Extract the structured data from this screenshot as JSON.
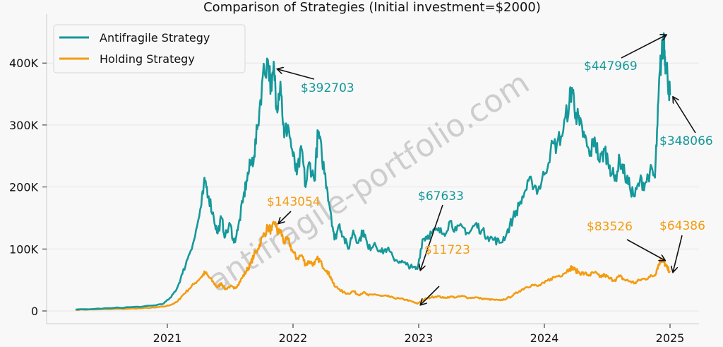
{
  "chart_data": {
    "type": "line",
    "title": "Comparison of Strategies (Initial investment=$2000)",
    "xlabel": "",
    "ylabel": "",
    "xlim": [
      2020.0,
      2025.2
    ],
    "ylim": [
      -20000,
      480000
    ],
    "x_ticks": [
      2021,
      2022,
      2023,
      2024,
      2025
    ],
    "x_tick_labels": [
      "2021",
      "2022",
      "2023",
      "2024",
      "2025"
    ],
    "y_ticks": [
      0,
      100000,
      200000,
      300000,
      400000
    ],
    "y_tick_labels": [
      "0",
      "100K",
      "200K",
      "300K",
      "400K"
    ],
    "grid": "horizontal",
    "legend": {
      "placement": "top-left",
      "entries": [
        "Antifragile Strategy",
        "Holding Strategy"
      ]
    },
    "watermark": "antifragile-portfolio.com",
    "series": [
      {
        "name": "Antifragile Strategy",
        "color": "#16989a",
        "x": [
          2020.27,
          2020.4,
          2020.55,
          2020.7,
          2020.8,
          2020.9,
          2020.97,
          2021.03,
          2021.08,
          2021.12,
          2021.17,
          2021.22,
          2021.27,
          2021.3,
          2021.33,
          2021.37,
          2021.4,
          2021.43,
          2021.46,
          2021.5,
          2021.53,
          2021.56,
          2021.6,
          2021.63,
          2021.66,
          2021.69,
          2021.72,
          2021.76,
          2021.8,
          2021.83,
          2021.85,
          2021.87,
          2021.9,
          2021.93,
          2021.96,
          2022.0,
          2022.03,
          2022.07,
          2022.1,
          2022.13,
          2022.17,
          2022.2,
          2022.23,
          2022.27,
          2022.3,
          2022.33,
          2022.37,
          2022.4,
          2022.44,
          2022.48,
          2022.52,
          2022.56,
          2022.6,
          2022.65,
          2022.7,
          2022.75,
          2022.8,
          2022.85,
          2022.9,
          2022.95,
          2022.99,
          2023.03,
          2023.06,
          2023.1,
          2023.15,
          2023.2,
          2023.25,
          2023.3,
          2023.35,
          2023.4,
          2023.45,
          2023.5,
          2023.55,
          2023.6,
          2023.65,
          2023.7,
          2023.75,
          2023.8,
          2023.85,
          2023.9,
          2023.95,
          2024.0,
          2024.05,
          2024.1,
          2024.15,
          2024.2,
          2024.22,
          2024.25,
          2024.28,
          2024.32,
          2024.36,
          2024.4,
          2024.44,
          2024.48,
          2024.52,
          2024.56,
          2024.6,
          2024.64,
          2024.68,
          2024.72,
          2024.76,
          2024.8,
          2024.84,
          2024.88,
          2024.9,
          2024.92,
          2024.94,
          2024.95,
          2024.96,
          2024.98,
          2025.0
        ],
        "values": [
          2000,
          3000,
          4500,
          6000,
          7000,
          9000,
          12000,
          22000,
          38000,
          60000,
          90000,
          120000,
          170000,
          210000,
          185000,
          150000,
          125000,
          150000,
          120000,
          140000,
          110000,
          130000,
          175000,
          210000,
          235000,
          250000,
          300000,
          380000,
          405000,
          355000,
          392703,
          330000,
          370000,
          280000,
          300000,
          250000,
          220000,
          260000,
          200000,
          240000,
          210000,
          290000,
          250000,
          200000,
          160000,
          115000,
          140000,
          120000,
          100000,
          130000,
          110000,
          130000,
          100000,
          110000,
          95000,
          100000,
          85000,
          80000,
          75000,
          70000,
          67633,
          115000,
          120000,
          125000,
          130000,
          125000,
          145000,
          130000,
          135000,
          125000,
          140000,
          130000,
          120000,
          115000,
          110000,
          125000,
          150000,
          170000,
          195000,
          210000,
          195000,
          220000,
          260000,
          270000,
          290000,
          340000,
          360000,
          320000,
          300000,
          280000,
          250000,
          280000,
          240000,
          260000,
          235000,
          210000,
          245000,
          220000,
          200000,
          185000,
          210000,
          205000,
          225000,
          215000,
          300000,
          390000,
          420000,
          447969,
          410000,
          380000,
          348066
        ]
      },
      {
        "name": "Holding Strategy",
        "color": "#f39c12",
        "x": [
          2020.27,
          2020.4,
          2020.55,
          2020.7,
          2020.8,
          2020.9,
          2020.97,
          2021.03,
          2021.08,
          2021.12,
          2021.17,
          2021.22,
          2021.27,
          2021.3,
          2021.33,
          2021.37,
          2021.4,
          2021.43,
          2021.46,
          2021.5,
          2021.53,
          2021.56,
          2021.6,
          2021.63,
          2021.66,
          2021.69,
          2021.72,
          2021.76,
          2021.8,
          2021.83,
          2021.86,
          2021.88,
          2021.9,
          2021.93,
          2021.96,
          2022.0,
          2022.03,
          2022.07,
          2022.1,
          2022.13,
          2022.17,
          2022.2,
          2022.23,
          2022.27,
          2022.3,
          2022.33,
          2022.37,
          2022.4,
          2022.44,
          2022.48,
          2022.52,
          2022.56,
          2022.6,
          2022.65,
          2022.7,
          2022.75,
          2022.8,
          2022.85,
          2022.9,
          2022.95,
          2022.99,
          2023.03,
          2023.06,
          2023.1,
          2023.15,
          2023.2,
          2023.25,
          2023.3,
          2023.35,
          2023.4,
          2023.45,
          2023.5,
          2023.55,
          2023.6,
          2023.65,
          2023.7,
          2023.75,
          2023.8,
          2023.85,
          2023.9,
          2023.95,
          2024.0,
          2024.05,
          2024.1,
          2024.15,
          2024.2,
          2024.22,
          2024.25,
          2024.28,
          2024.32,
          2024.36,
          2024.4,
          2024.44,
          2024.48,
          2024.52,
          2024.56,
          2024.6,
          2024.64,
          2024.68,
          2024.72,
          2024.76,
          2024.8,
          2024.84,
          2024.88,
          2024.9,
          2024.92,
          2024.94,
          2024.95,
          2024.96,
          2024.98,
          2025.0
        ],
        "values": [
          2000,
          2500,
          3000,
          3800,
          4500,
          5500,
          7000,
          10000,
          15000,
          25000,
          35000,
          45000,
          55000,
          62000,
          55000,
          45000,
          38000,
          45000,
          35000,
          40000,
          36000,
          42000,
          55000,
          65000,
          75000,
          90000,
          100000,
          120000,
          135000,
          130000,
          143054,
          125000,
          130000,
          110000,
          115000,
          95000,
          85000,
          90000,
          75000,
          80000,
          75000,
          85000,
          75000,
          65000,
          55000,
          40000,
          35000,
          30000,
          28000,
          32000,
          26000,
          30000,
          25000,
          27000,
          24000,
          24000,
          21000,
          20000,
          18000,
          15000,
          11723,
          17000,
          20000,
          22000,
          24000,
          21000,
          23000,
          22000,
          24000,
          21000,
          22000,
          20000,
          19000,
          18000,
          17000,
          20000,
          25000,
          32000,
          38000,
          42000,
          40000,
          45000,
          52000,
          56000,
          60000,
          68000,
          70000,
          65000,
          62000,
          60000,
          58000,
          62000,
          55000,
          58000,
          52000,
          50000,
          56000,
          50000,
          48000,
          45000,
          50000,
          52000,
          55000,
          58000,
          70000,
          80000,
          83526,
          80000,
          75000,
          68000,
          64386
        ]
      }
    ],
    "annotations": [
      {
        "text": "$392703",
        "series": "Antifragile Strategy",
        "x": 2021.85,
        "y": 392703,
        "color": "#16989a"
      },
      {
        "text": "$67633",
        "series": "Antifragile Strategy",
        "x": 2022.99,
        "y": 67633,
        "color": "#16989a"
      },
      {
        "text": "$447969",
        "series": "Antifragile Strategy",
        "x": 2024.95,
        "y": 447969,
        "color": "#16989a"
      },
      {
        "text": "$348066",
        "series": "Antifragile Strategy",
        "x": 2025.0,
        "y": 348066,
        "color": "#16989a"
      },
      {
        "text": "$143054",
        "series": "Holding Strategy",
        "x": 2021.86,
        "y": 143054,
        "color": "#f39c12"
      },
      {
        "text": "$11723",
        "series": "Holding Strategy",
        "x": 2022.99,
        "y": 11723,
        "color": "#f39c12"
      },
      {
        "text": "$83526",
        "series": "Holding Strategy",
        "x": 2024.94,
        "y": 83526,
        "color": "#f39c12"
      },
      {
        "text": "$64386",
        "series": "Holding Strategy",
        "x": 2025.0,
        "y": 64386,
        "color": "#f39c12"
      }
    ]
  }
}
